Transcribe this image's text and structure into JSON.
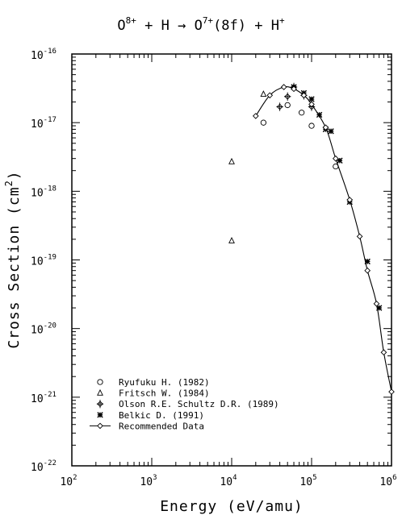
{
  "chart_data": {
    "type": "scatter",
    "title": {
      "parts": [
        {
          "text": "O",
          "sup": "8+"
        },
        {
          "text": " + H → O",
          "sup": "7+"
        },
        {
          "text": "(8f) + H",
          "sup": "+"
        }
      ]
    },
    "xlabel": "Energy (eV/amu)",
    "ylabel": {
      "text": "Cross Section (cm",
      "sup": "2",
      "tail": ")"
    },
    "xscale": "log",
    "yscale": "log",
    "xlim": [
      100,
      1000000
    ],
    "ylim": [
      1e-22,
      1e-16
    ],
    "x_ticks": [
      {
        "base": "10",
        "exp": "2"
      },
      {
        "base": "10",
        "exp": "3"
      },
      {
        "base": "10",
        "exp": "4"
      },
      {
        "base": "10",
        "exp": "5"
      },
      {
        "base": "10",
        "exp": "6"
      }
    ],
    "y_ticks": [
      {
        "base": "10",
        "exp": "-22"
      },
      {
        "base": "10",
        "exp": "-21"
      },
      {
        "base": "10",
        "exp": "-20"
      },
      {
        "base": "10",
        "exp": "-19"
      },
      {
        "base": "10",
        "exp": "-18"
      },
      {
        "base": "10",
        "exp": "-17"
      },
      {
        "base": "10",
        "exp": "-16"
      }
    ],
    "legend_position": "bottom-left",
    "series": [
      {
        "name": "Ryufuku H. (1982)",
        "marker": "circle",
        "x": [
          25000,
          50000,
          75000,
          100000,
          200000
        ],
        "y": [
          1e-17,
          1.8e-17,
          1.4e-17,
          9e-18,
          2.3e-18
        ]
      },
      {
        "name": "Fritsch W. (1984)",
        "marker": "triangle",
        "x": [
          10000,
          10000,
          25000
        ],
        "y": [
          1.9e-19,
          2.7e-18,
          2.6e-17
        ]
      },
      {
        "name": "Olson R.E. Schultz D.R. (1989)",
        "marker": "diamond-plus",
        "x": [
          40000,
          50000,
          60000,
          80000,
          100000
        ],
        "y": [
          1.7e-17,
          2.4e-17,
          3.3e-17,
          2.5e-17,
          1.7e-17
        ]
      },
      {
        "name": "Belkic D. (1991)",
        "marker": "star",
        "x": [
          60000,
          80000,
          100000,
          125000,
          150000,
          175000,
          225000,
          300000,
          500000,
          700000
        ],
        "y": [
          3.3e-17,
          2.7e-17,
          2.2e-17,
          1.3e-17,
          8e-18,
          7.5e-18,
          2.8e-18,
          7e-19,
          9.5e-20,
          2e-20
        ]
      },
      {
        "name": "Recommended Data",
        "marker": "diamond-line",
        "x": [
          20000,
          30000,
          45000,
          60000,
          80000,
          100000,
          150000,
          200000,
          300000,
          400000,
          500000,
          650000,
          800000,
          1000000
        ],
        "y": [
          1.25e-17,
          2.5e-17,
          3.3e-17,
          3.1e-17,
          2.5e-17,
          1.85e-17,
          8.5e-18,
          3e-18,
          7.5e-19,
          2.2e-19,
          7e-20,
          2.3e-20,
          4.5e-21,
          1.2e-21
        ]
      }
    ]
  }
}
